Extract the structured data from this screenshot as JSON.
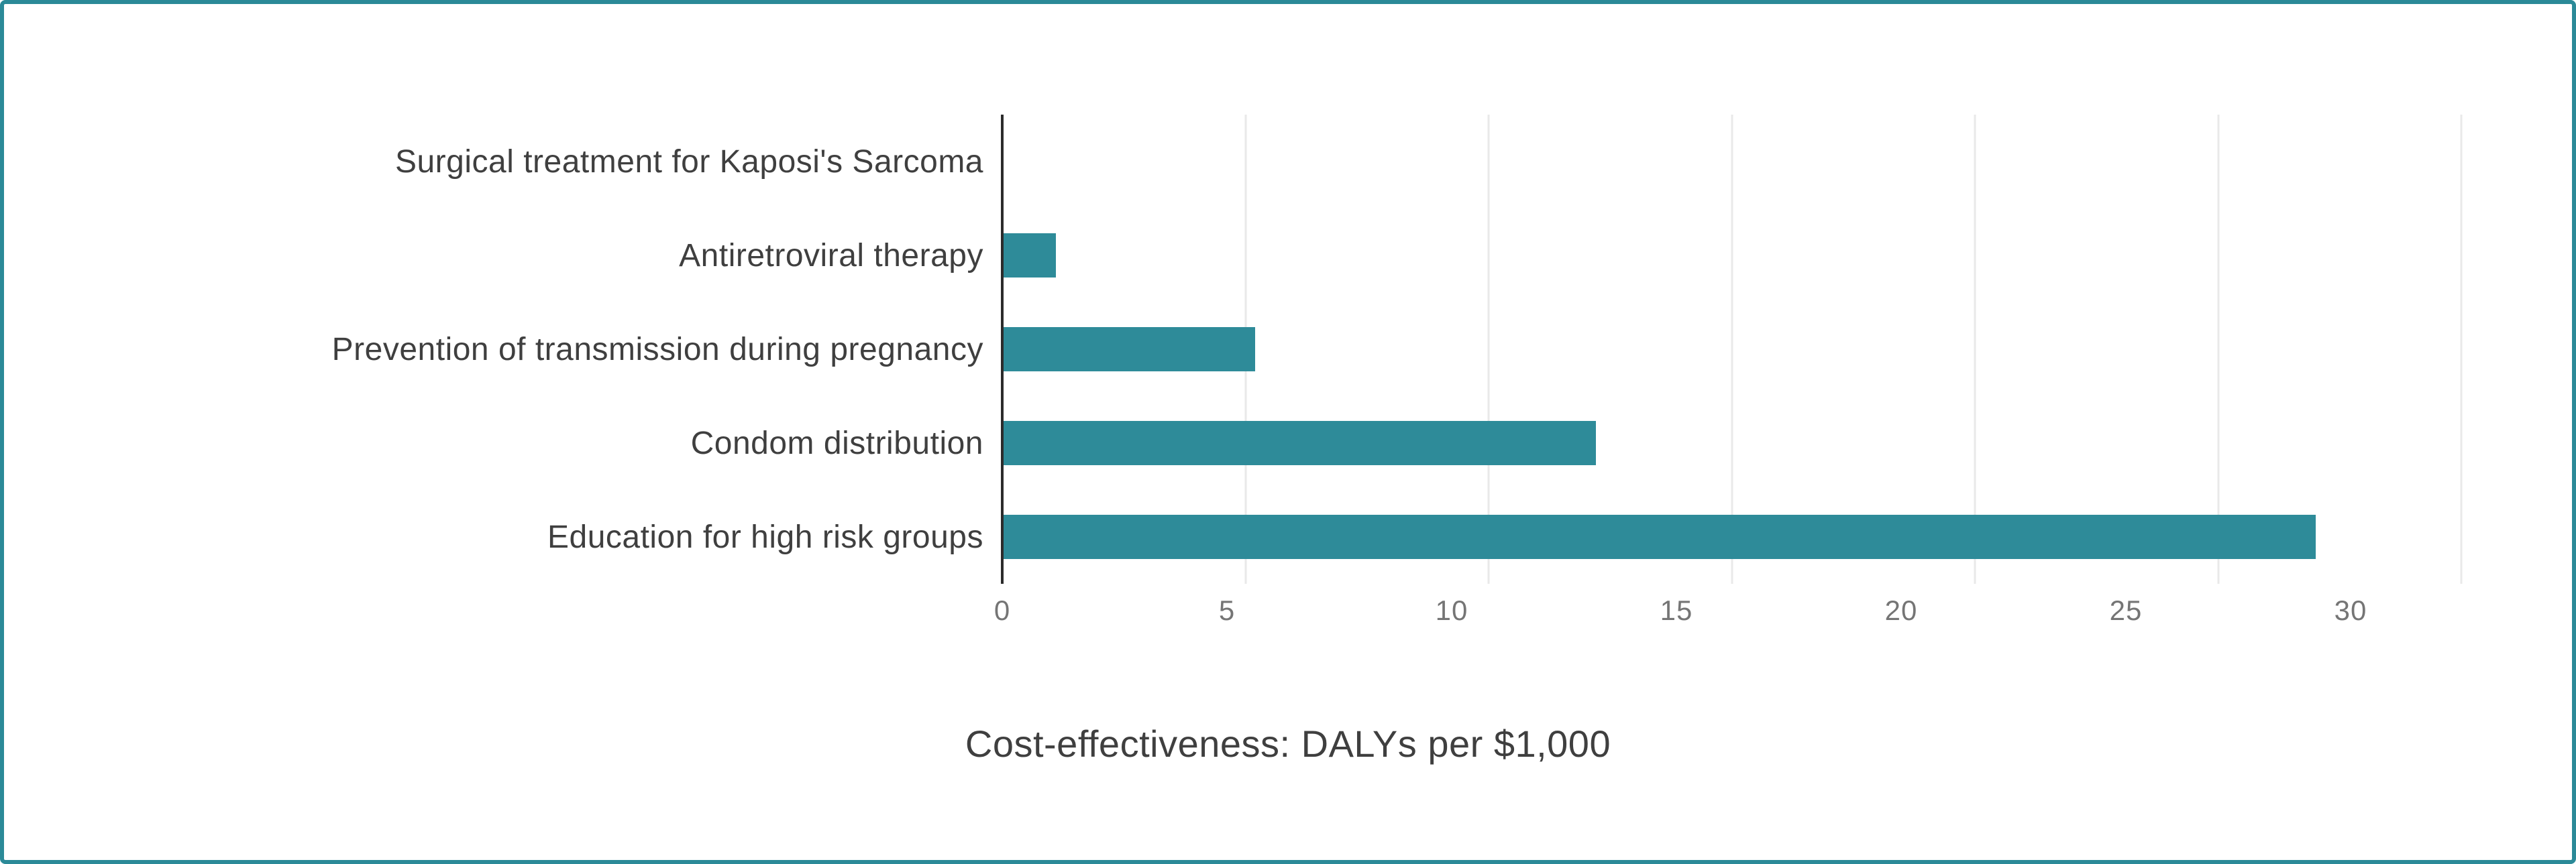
{
  "chart_data": {
    "type": "bar",
    "orientation": "horizontal",
    "title": "Cost-effectiveness: DALYs per $1,000",
    "xlabel": "",
    "ylabel": "",
    "categories": [
      "Surgical treatment for Kaposi's Sarcoma",
      "Antiretroviral therapy",
      "Prevention of transmission during pregnancy",
      "Condom distribution",
      "Education for high risk groups"
    ],
    "values": [
      0,
      1.1,
      5.2,
      12.2,
      27
    ],
    "xlim": [
      0,
      30
    ],
    "xticks": [
      0,
      5,
      10,
      15,
      20,
      25,
      30
    ],
    "grid": true,
    "legend": false
  },
  "style": {
    "bar_color": "#2e8b99",
    "border_color": "#2b8a98",
    "grid_color": "#e9e9e9",
    "axis_color": "#2b2b2b",
    "label_color": "#3f3f3f",
    "tick_color": "#757575",
    "title_color": "#3f3f3f"
  }
}
